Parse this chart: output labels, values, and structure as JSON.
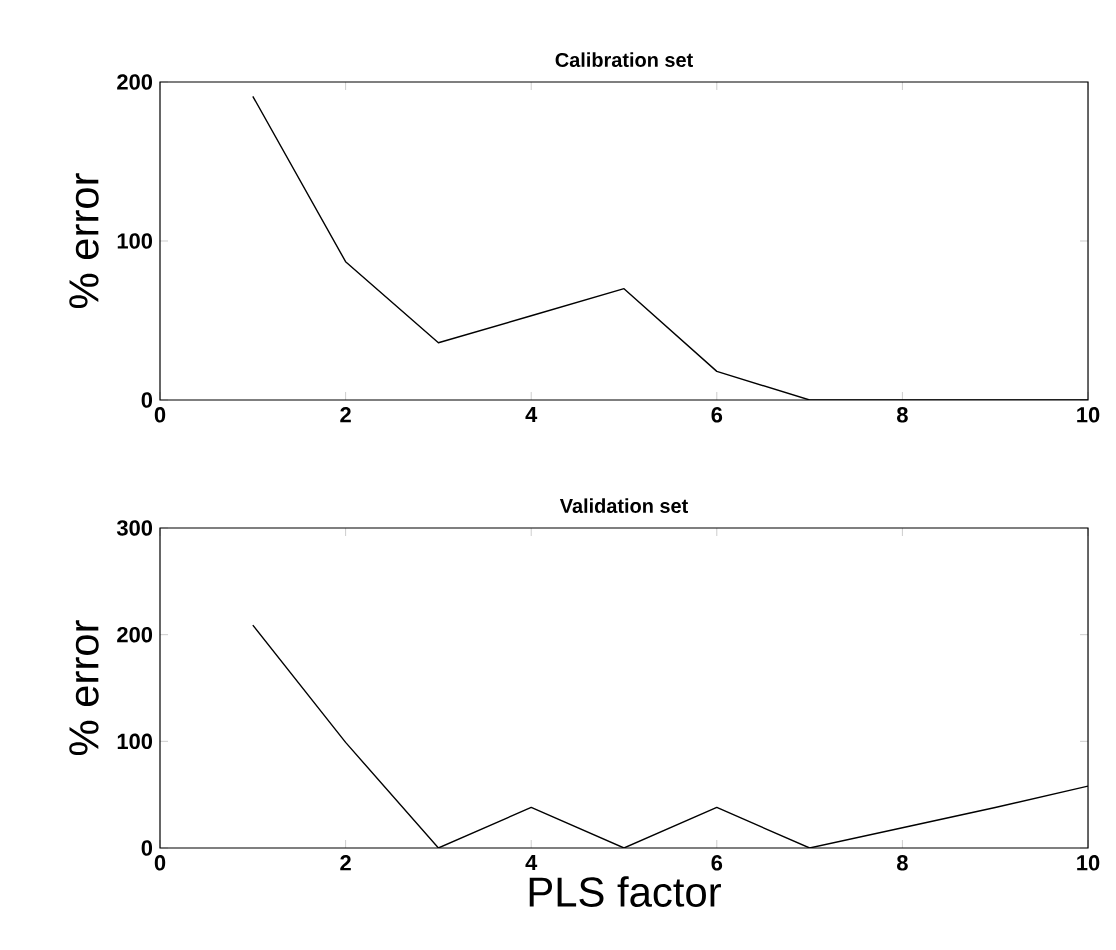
{
  "chart_data": [
    {
      "type": "line",
      "title": "Calibration set",
      "ylabel": "% error",
      "x": [
        1,
        2,
        3,
        4,
        5,
        6,
        7,
        8,
        9,
        10
      ],
      "series": [
        {
          "color": "#000000",
          "values": [
            191,
            87,
            36,
            53,
            70,
            18,
            0,
            0,
            0,
            0
          ]
        }
      ],
      "xlim": [
        0,
        10
      ],
      "ylim": [
        0,
        200
      ],
      "xticks": [
        0,
        2,
        4,
        6,
        8,
        10
      ],
      "yticks": [
        0,
        100,
        200
      ]
    },
    {
      "type": "line",
      "title": "Validation set",
      "xlabel": "PLS factor",
      "ylabel": "% error",
      "x": [
        1,
        2,
        3,
        4,
        5,
        6,
        7,
        8,
        9,
        10
      ],
      "series": [
        {
          "color": "#000000",
          "values": [
            209,
            99,
            0,
            38,
            0,
            38,
            0,
            19,
            38,
            58
          ]
        }
      ],
      "xlim": [
        0,
        10
      ],
      "ylim": [
        0,
        300
      ],
      "xticks": [
        0,
        2,
        4,
        6,
        8,
        10
      ],
      "yticks": [
        0,
        100,
        200,
        300
      ]
    }
  ]
}
